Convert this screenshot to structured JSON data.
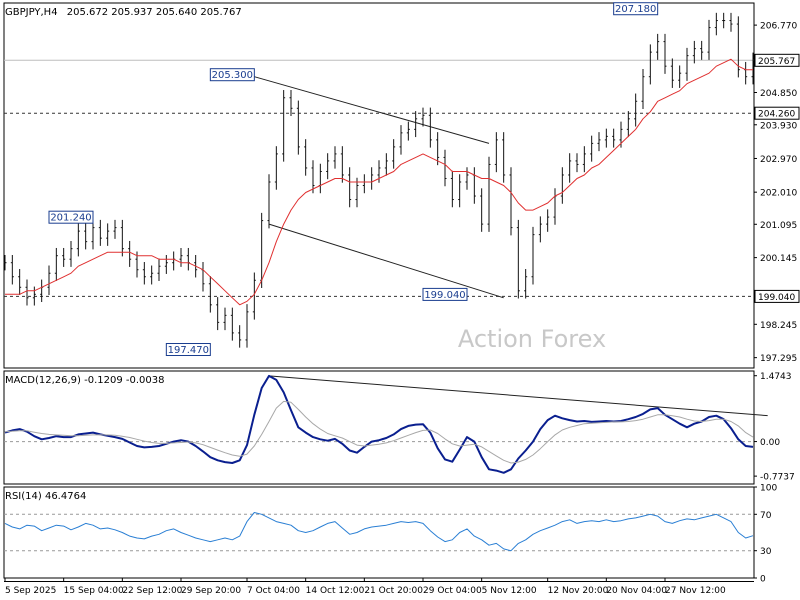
{
  "chart_data": [
    {
      "type": "line",
      "panel": "price",
      "title": "GBPJPY,H4",
      "ohlc": "205.672 205.937 205.640 205.767",
      "ylim": [
        197.0,
        207.4
      ],
      "ticks": [
        "206.770",
        "205.767",
        "204.850",
        "204.260",
        "203.930",
        "202.970",
        "202.010",
        "201.095",
        "200.145",
        "199.040",
        "198.245",
        "197.295"
      ],
      "tick_values": [
        206.77,
        205.767,
        204.85,
        204.26,
        203.93,
        202.97,
        202.01,
        201.095,
        200.145,
        199.04,
        198.245,
        197.295
      ],
      "current_price": 205.767,
      "current_price_label": "205.767",
      "hlines": [
        {
          "value": 204.26,
          "label": "204.260"
        },
        {
          "value": 199.04,
          "label": "199.040"
        }
      ],
      "annotations": [
        {
          "label": "207.180",
          "value": 207.18,
          "x_index": 89
        },
        {
          "label": "205.300",
          "value": 205.3,
          "x_index": 34
        },
        {
          "label": "201.240",
          "value": 201.24,
          "x_index": 12
        },
        {
          "label": "199.040",
          "value": 199.04,
          "x_index": 63
        },
        {
          "label": "197.470",
          "value": 197.47,
          "x_index": 28
        }
      ],
      "trendlines": [
        {
          "from": [
            34,
            205.3
          ],
          "to": [
            66,
            203.4
          ]
        },
        {
          "from": [
            36,
            201.1
          ],
          "to": [
            68,
            199.0
          ]
        }
      ],
      "watermark": "Action Forex",
      "series": [
        {
          "kind": "price",
          "values": [
            200.0,
            199.6,
            199.3,
            199.0,
            199.1,
            199.3,
            199.7,
            200.2,
            200.1,
            200.4,
            200.9,
            200.6,
            201.0,
            200.7,
            200.9,
            201.0,
            200.4,
            200.1,
            199.8,
            199.6,
            199.7,
            199.9,
            200.0,
            200.1,
            200.2,
            200.0,
            199.8,
            199.4,
            198.8,
            198.3,
            198.5,
            198.0,
            197.8,
            198.6,
            199.5,
            201.2,
            202.3,
            203.1,
            204.7,
            204.4,
            203.3,
            202.7,
            202.2,
            202.6,
            202.9,
            203.1,
            202.5,
            201.8,
            202.2,
            202.3,
            202.5,
            202.7,
            202.9,
            203.3,
            203.7,
            203.8,
            204.1,
            204.2,
            203.5,
            203.0,
            202.4,
            201.8,
            202.3,
            202.5,
            201.9,
            201.1,
            202.8,
            203.5,
            202.5,
            201.0,
            199.2,
            199.6,
            200.8,
            201.1,
            201.3,
            201.9,
            202.5,
            202.9,
            202.8,
            203.1,
            203.4,
            203.5,
            203.6,
            203.5,
            203.8,
            204.1,
            204.6,
            205.3,
            206.0,
            206.3,
            205.6,
            205.2,
            205.4,
            205.9,
            206.1,
            206.0,
            206.7,
            206.9,
            206.9,
            206.8,
            205.5,
            205.3,
            205.767
          ]
        },
        {
          "kind": "ma",
          "color": "#e03030",
          "values": [
            199.1,
            199.1,
            199.1,
            199.2,
            199.2,
            199.3,
            199.4,
            199.5,
            199.6,
            199.7,
            199.9,
            200.0,
            200.1,
            200.2,
            200.3,
            200.3,
            200.3,
            200.3,
            200.2,
            200.2,
            200.2,
            200.1,
            200.1,
            200.1,
            200.0,
            200.0,
            199.9,
            199.8,
            199.6,
            199.4,
            199.2,
            199.0,
            198.8,
            198.9,
            199.1,
            199.5,
            200.0,
            200.6,
            201.1,
            201.5,
            201.8,
            202.0,
            202.1,
            202.2,
            202.3,
            202.4,
            202.4,
            202.3,
            202.3,
            202.3,
            202.3,
            202.4,
            202.5,
            202.6,
            202.8,
            202.9,
            203.0,
            203.1,
            203.0,
            202.9,
            202.8,
            202.6,
            202.6,
            202.6,
            202.5,
            202.4,
            202.4,
            202.3,
            202.2,
            202.0,
            201.7,
            201.5,
            201.5,
            201.6,
            201.7,
            201.9,
            202.0,
            202.2,
            202.4,
            202.5,
            202.7,
            202.8,
            203.0,
            203.2,
            203.4,
            203.6,
            203.8,
            204.1,
            204.3,
            204.6,
            204.7,
            204.8,
            204.9,
            205.1,
            205.2,
            205.3,
            205.4,
            205.6,
            205.7,
            205.8,
            205.6,
            205.5,
            205.5
          ]
        }
      ]
    },
    {
      "type": "line",
      "panel": "macd",
      "title": "MACD(12,26,9) -0.1209 -0.0038",
      "ylim": [
        -0.95,
        1.58
      ],
      "ticks": [
        "1.4743",
        "0.00",
        "-0.7737"
      ],
      "tick_values": [
        1.4743,
        0.0,
        -0.7737
      ],
      "trendlines": [
        {
          "from": [
            36,
            1.47
          ],
          "to": [
            104,
            0.58
          ]
        }
      ],
      "series": [
        {
          "kind": "macd",
          "color": "#0a1f8f",
          "values": [
            0.2,
            0.25,
            0.28,
            0.22,
            0.12,
            0.05,
            0.08,
            0.12,
            0.1,
            0.1,
            0.16,
            0.18,
            0.2,
            0.16,
            0.13,
            0.1,
            0.06,
            -0.02,
            -0.1,
            -0.13,
            -0.12,
            -0.1,
            -0.05,
            0.0,
            0.03,
            0.0,
            -0.1,
            -0.22,
            -0.35,
            -0.42,
            -0.46,
            -0.48,
            -0.42,
            -0.08,
            0.6,
            1.2,
            1.47,
            1.38,
            1.1,
            0.7,
            0.32,
            0.2,
            0.1,
            0.05,
            0.02,
            0.06,
            -0.05,
            -0.2,
            -0.25,
            -0.12,
            0.0,
            0.03,
            0.08,
            0.16,
            0.28,
            0.35,
            0.38,
            0.39,
            0.2,
            -0.15,
            -0.4,
            -0.45,
            -0.18,
            0.1,
            0.0,
            -0.35,
            -0.62,
            -0.65,
            -0.7,
            -0.62,
            -0.38,
            -0.2,
            0.0,
            0.28,
            0.48,
            0.58,
            0.52,
            0.48,
            0.45,
            0.46,
            0.44,
            0.45,
            0.46,
            0.45,
            0.46,
            0.5,
            0.55,
            0.62,
            0.72,
            0.75,
            0.6,
            0.5,
            0.4,
            0.32,
            0.4,
            0.45,
            0.55,
            0.58,
            0.5,
            0.3,
            0.05,
            -0.1,
            -0.12
          ]
        },
        {
          "kind": "signal",
          "color": "#a8a8a8",
          "values": [
            0.22,
            0.23,
            0.24,
            0.24,
            0.21,
            0.18,
            0.16,
            0.15,
            0.14,
            0.13,
            0.13,
            0.14,
            0.15,
            0.15,
            0.15,
            0.14,
            0.12,
            0.09,
            0.05,
            0.01,
            -0.02,
            -0.04,
            -0.04,
            -0.03,
            -0.02,
            -0.01,
            -0.03,
            -0.07,
            -0.13,
            -0.19,
            -0.25,
            -0.3,
            -0.33,
            -0.28,
            -0.1,
            0.16,
            0.45,
            0.75,
            0.9,
            0.88,
            0.72,
            0.55,
            0.4,
            0.28,
            0.18,
            0.13,
            0.08,
            -0.0,
            -0.08,
            -0.1,
            -0.08,
            -0.06,
            -0.03,
            0.02,
            0.08,
            0.14,
            0.2,
            0.25,
            0.26,
            0.18,
            0.06,
            -0.05,
            -0.1,
            -0.08,
            -0.06,
            -0.12,
            -0.22,
            -0.32,
            -0.42,
            -0.48,
            -0.46,
            -0.4,
            -0.3,
            -0.16,
            0.0,
            0.15,
            0.26,
            0.32,
            0.36,
            0.4,
            0.41,
            0.42,
            0.43,
            0.44,
            0.44,
            0.45,
            0.47,
            0.5,
            0.55,
            0.6,
            0.6,
            0.58,
            0.55,
            0.5,
            0.46,
            0.45,
            0.47,
            0.5,
            0.5,
            0.45,
            0.35,
            0.2,
            0.1
          ]
        }
      ]
    },
    {
      "type": "line",
      "panel": "rsi",
      "title": "RSI(14) 46.4764",
      "ylim": [
        0,
        100
      ],
      "ticks": [
        "100",
        "70",
        "30",
        "0"
      ],
      "tick_values": [
        100,
        70,
        30,
        0
      ],
      "hlines": [
        {
          "value": 70
        },
        {
          "value": 30
        }
      ],
      "series": [
        {
          "kind": "rsi",
          "color": "#2a7fd4",
          "values": [
            60,
            56,
            54,
            58,
            57,
            52,
            55,
            58,
            57,
            53,
            56,
            60,
            58,
            54,
            55,
            53,
            50,
            46,
            44,
            43,
            46,
            48,
            52,
            54,
            50,
            47,
            44,
            42,
            40,
            42,
            44,
            42,
            46,
            62,
            72,
            70,
            66,
            62,
            60,
            58,
            52,
            50,
            52,
            56,
            60,
            62,
            55,
            48,
            50,
            54,
            56,
            57,
            58,
            60,
            62,
            61,
            62,
            60,
            52,
            45,
            40,
            42,
            50,
            54,
            46,
            42,
            36,
            38,
            32,
            30,
            38,
            42,
            48,
            52,
            55,
            58,
            62,
            64,
            60,
            62,
            63,
            62,
            64,
            62,
            63,
            65,
            66,
            68,
            70,
            68,
            62,
            60,
            63,
            65,
            64,
            66,
            68,
            70,
            66,
            62,
            50,
            44,
            46.4764
          ]
        }
      ]
    }
  ],
  "x_axis": {
    "labels": [
      "5 Sep 2025",
      "15 Sep 04:00",
      "22 Sep 12:00",
      "29 Sep 20:00",
      "7 Oct 04:00",
      "14 Oct 12:00",
      "21 Oct 20:00",
      "29 Oct 04:00",
      "5 Nov 12:00",
      "12 Nov 20:00",
      "20 Nov 04:00",
      "27 Nov 12:00"
    ],
    "label_index": [
      0,
      8,
      16,
      24,
      33,
      41,
      49,
      57,
      65,
      74,
      82,
      90
    ]
  }
}
